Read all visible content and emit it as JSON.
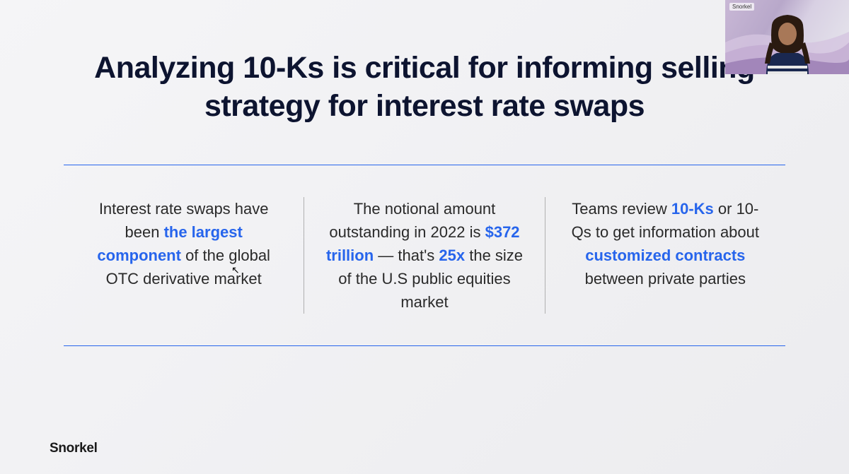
{
  "slide": {
    "title": "Analyzing 10-Ks is critical for informing selling strategy for interest rate swaps",
    "columns": [
      {
        "segments": [
          {
            "text": "Interest rate swaps have been ",
            "highlight": false
          },
          {
            "text": "the largest component",
            "highlight": true
          },
          {
            "text": " of the global OTC derivative market",
            "highlight": false
          }
        ]
      },
      {
        "segments": [
          {
            "text": "The notional amount outstanding in 2022 is ",
            "highlight": false
          },
          {
            "text": "$372 trillion",
            "highlight": true
          },
          {
            "text": " — that's ",
            "highlight": false
          },
          {
            "text": "25x",
            "highlight": true
          },
          {
            "text": " the size of the U.S public equities market",
            "highlight": false
          }
        ]
      },
      {
        "segments": [
          {
            "text": "Teams review ",
            "highlight": false
          },
          {
            "text": "10-Ks",
            "highlight": true
          },
          {
            "text": " or 10-Qs to get information about ",
            "highlight": false
          },
          {
            "text": "customized contracts",
            "highlight": true
          },
          {
            "text": " between private parties",
            "highlight": false
          }
        ]
      }
    ],
    "divider_color": "#2765ec",
    "highlight_color": "#2765ec",
    "text_color": "#2a2a2a",
    "title_color": "#0d1430",
    "background_gradient": [
      "#f5f5f7",
      "#ececef"
    ]
  },
  "logo": "Snorkel",
  "webcam": {
    "label": "Snorkel"
  }
}
